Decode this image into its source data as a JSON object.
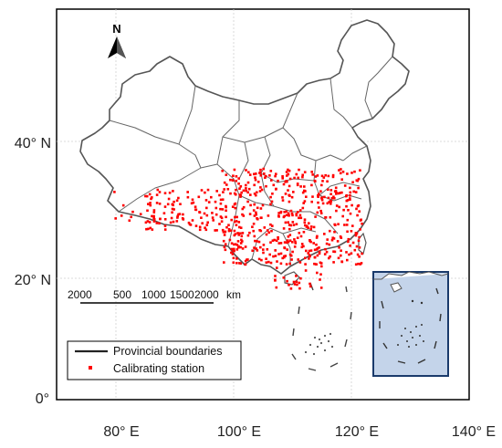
{
  "map": {
    "x_axis": {
      "ticks": [
        {
          "label": "80° E",
          "lon": 80
        },
        {
          "label": "100° E",
          "lon": 100
        },
        {
          "label": "120° E",
          "lon": 120
        },
        {
          "label": "140° E",
          "lon": 140
        }
      ]
    },
    "y_axis": {
      "ticks": [
        {
          "label": "40° N",
          "lat": 40
        },
        {
          "label": "20° N",
          "lat": 20
        },
        {
          "label": "0°",
          "lat": 0
        }
      ]
    },
    "north_arrow": {
      "label": "N"
    },
    "scale_bar": {
      "labels": [
        "2000",
        "500",
        "1000",
        "1500",
        "2000",
        "km"
      ]
    },
    "legend": {
      "items": [
        {
          "label": "Provincial boundaries",
          "symbol": "line",
          "color": "#222222"
        },
        {
          "label": "Calibrating station",
          "symbol": "square",
          "color": "#ff0000"
        }
      ]
    },
    "colors": {
      "station": "#ff0000",
      "boundary": "#555555",
      "inset_fill": "#c4d4ea",
      "inset_border": "#1a3a6b"
    },
    "station_regions": [
      {
        "lon_range": [
          98,
          122
        ],
        "lat_range": [
          22,
          36
        ],
        "count": 520
      },
      {
        "lon_range": [
          85,
          98
        ],
        "lat_range": [
          27,
          33
        ],
        "count": 110
      },
      {
        "lon_range": [
          106,
          115
        ],
        "lat_range": [
          18,
          22
        ],
        "count": 25
      },
      {
        "lon_range": [
          79,
          85
        ],
        "lat_range": [
          28,
          33
        ],
        "count": 8
      }
    ]
  }
}
